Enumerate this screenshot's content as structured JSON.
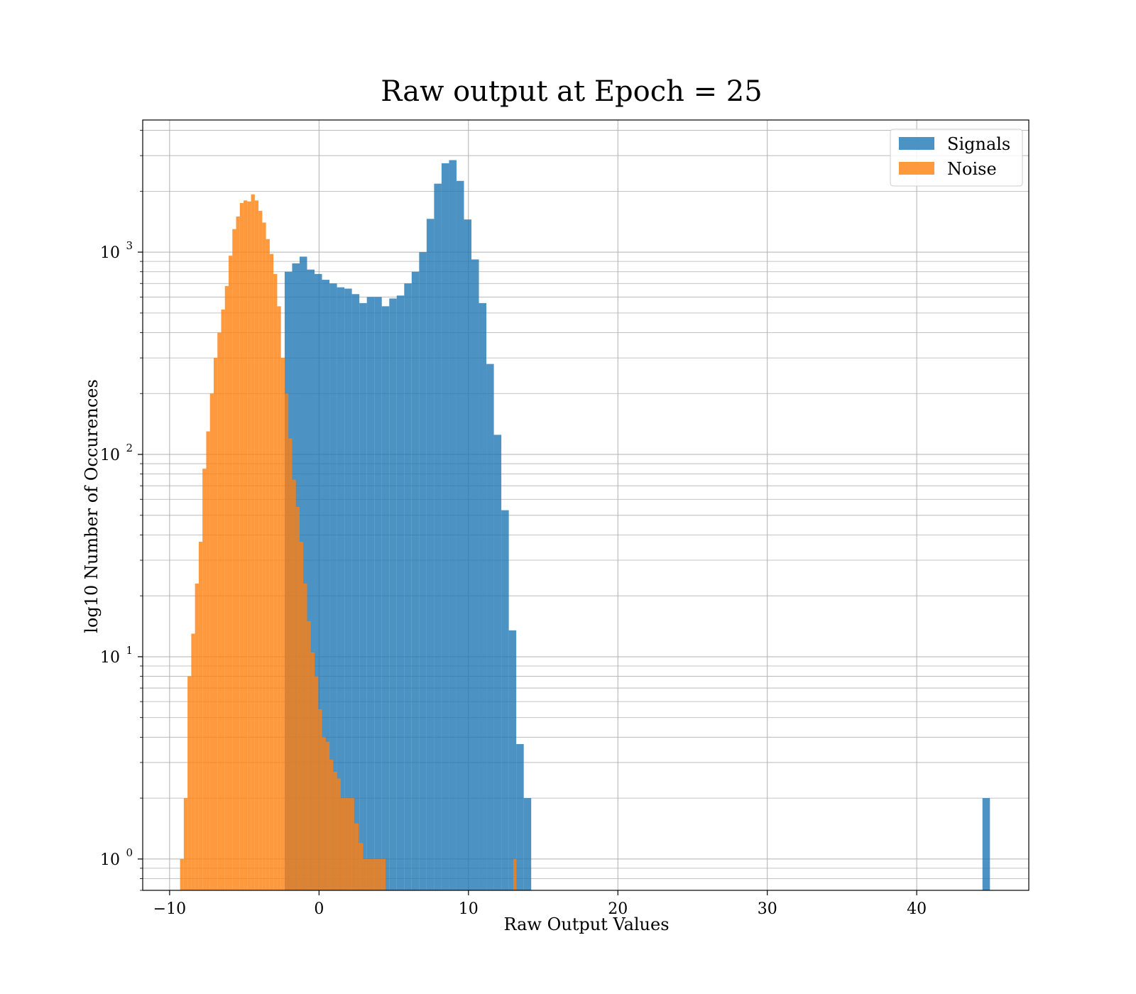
{
  "chart_data": {
    "type": "histogram",
    "title": "Raw output at Epoch = 25",
    "xlabel": "Raw Output Values",
    "ylabel": "log10 Number of Occurences",
    "xlim": [
      -11.8,
      47.5
    ],
    "ylim": [
      0.7,
      4500
    ],
    "y_scale": "log",
    "grid": true,
    "legend_placement": "top-right",
    "x_ticks": [
      -10,
      0,
      10,
      20,
      30,
      40
    ],
    "x_tick_labels": [
      "−10",
      "0",
      "10",
      "20",
      "30",
      "40"
    ],
    "y_ticks": [
      {
        "value": 1,
        "base": "10",
        "exp": "0"
      },
      {
        "value": 10,
        "base": "10",
        "exp": "1"
      },
      {
        "value": 100,
        "base": "10",
        "exp": "2"
      },
      {
        "value": 1000,
        "base": "10",
        "exp": "3"
      }
    ],
    "series": [
      {
        "name": "Signals",
        "color": "#1f77b4",
        "opacity": 0.8,
        "bin_edges": [
          -2.3,
          -1.8,
          -1.3,
          -0.8,
          -0.3,
          0.2,
          0.7,
          1.2,
          1.7,
          2.2,
          2.7,
          3.2,
          3.7,
          4.2,
          4.7,
          5.2,
          5.7,
          6.2,
          6.7,
          7.2,
          7.7,
          8.2,
          8.7,
          9.2,
          9.7,
          10.2,
          10.7,
          11.2,
          11.7,
          12.2,
          12.7,
          13.2,
          13.7,
          14.2
        ],
        "counts": [
          800,
          880,
          950,
          820,
          780,
          730,
          700,
          670,
          660,
          620,
          560,
          600,
          600,
          540,
          590,
          610,
          700,
          800,
          1000,
          1460,
          2180,
          2750,
          2850,
          2250,
          1450,
          920,
          560,
          280,
          125,
          53,
          13.5,
          3.7,
          2
        ],
        "outliers": [
          {
            "bin_edges": [
              44.4,
              44.9
            ],
            "count": 2
          }
        ]
      },
      {
        "name": "Noise",
        "color": "#ff7f0e",
        "opacity": 0.8,
        "bin_edges": [
          -9.3,
          -9.05,
          -8.8,
          -8.55,
          -8.3,
          -8.05,
          -7.8,
          -7.55,
          -7.3,
          -7.05,
          -6.8,
          -6.55,
          -6.3,
          -6.05,
          -5.8,
          -5.55,
          -5.3,
          -5.05,
          -4.8,
          -4.55,
          -4.3,
          -4.05,
          -3.8,
          -3.55,
          -3.3,
          -3.05,
          -2.8,
          -2.55,
          -2.3,
          -2.05,
          -1.8,
          -1.55,
          -1.3,
          -1.05,
          -0.8,
          -0.55,
          -0.3,
          -0.05,
          0.2,
          0.45,
          0.7,
          0.95,
          1.2,
          1.45,
          1.75,
          2.05,
          2.35,
          2.65,
          2.95,
          3.25,
          3.55,
          3.85,
          4.15,
          4.45
        ],
        "counts": [
          1,
          2,
          8,
          13,
          23,
          37,
          85,
          130,
          200,
          300,
          400,
          520,
          680,
          960,
          1300,
          1500,
          1750,
          1800,
          1780,
          1930,
          1800,
          1600,
          1400,
          1160,
          980,
          780,
          540,
          300,
          200,
          120,
          75,
          55,
          37,
          23,
          15,
          10.5,
          8,
          5.5,
          4,
          3.8,
          3.1,
          2.7,
          2.5,
          2,
          2,
          2,
          1.5,
          1.2,
          1,
          1,
          1,
          1,
          1
        ],
        "outliers": [
          {
            "bin_edges": [
              13.0,
              13.2
            ],
            "count": 1
          }
        ]
      }
    ]
  }
}
